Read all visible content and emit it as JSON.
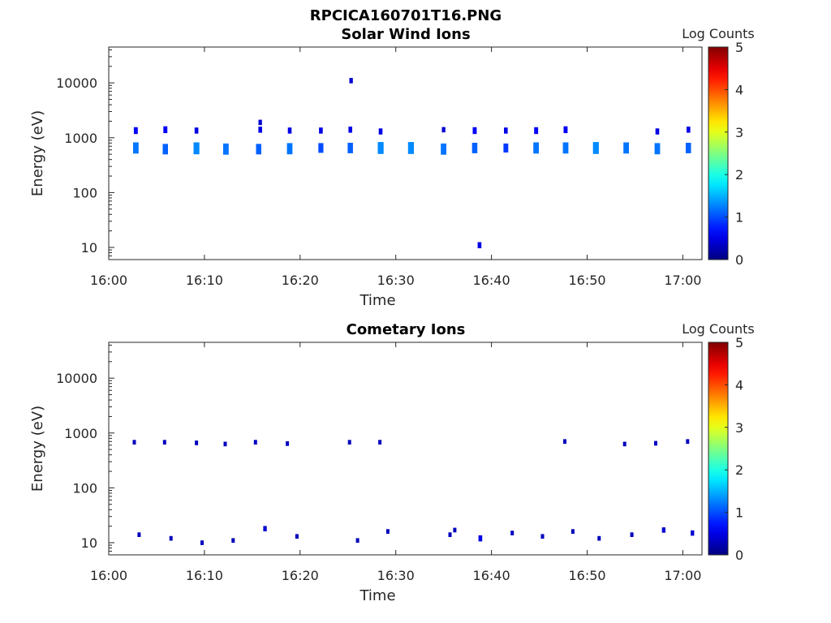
{
  "figure_title": "RPCICA160701T16.PNG",
  "colors": {
    "bg": "#ffffff",
    "axis": "#262626",
    "dark_blue": "#000080",
    "blue": "#0033ff",
    "cyan_blue": "#0099ff"
  },
  "chart_data": [
    {
      "type": "heatmap",
      "title": "Solar Wind Ions",
      "xlabel": "Time",
      "ylabel": "Energy (eV)",
      "y_scale": "log",
      "ylim": [
        6,
        45000
      ],
      "xlim": [
        "16:00",
        "17:02"
      ],
      "x_tick_labels": [
        "16:00",
        "16:10",
        "16:20",
        "16:30",
        "16:40",
        "16:50",
        "17:00"
      ],
      "y_tick_labels": [
        "10",
        "100",
        "1000",
        "10000"
      ],
      "colorbar": {
        "label": "Log Counts",
        "range": [
          0,
          5
        ],
        "tick_labels": [
          "0",
          "1",
          "2",
          "3",
          "4",
          "5"
        ]
      },
      "grid": false,
      "points": [
        {
          "t": "16:02:50",
          "e": 1350,
          "log_counts": 0.6
        },
        {
          "t": "16:02:50",
          "e": 650,
          "log_counts": 1.2
        },
        {
          "t": "16:05:55",
          "e": 1400,
          "log_counts": 0.6
        },
        {
          "t": "16:05:55",
          "e": 620,
          "log_counts": 1.1
        },
        {
          "t": "16:09:10",
          "e": 1350,
          "log_counts": 0.5
        },
        {
          "t": "16:09:10",
          "e": 640,
          "log_counts": 1.3
        },
        {
          "t": "16:12:15",
          "e": 620,
          "log_counts": 1.2
        },
        {
          "t": "16:15:50",
          "e": 1900,
          "log_counts": 0.4
        },
        {
          "t": "16:15:50",
          "e": 1400,
          "log_counts": 0.5
        },
        {
          "t": "16:15:40",
          "e": 620,
          "log_counts": 1.1
        },
        {
          "t": "16:18:55",
          "e": 1350,
          "log_counts": 0.5
        },
        {
          "t": "16:18:55",
          "e": 630,
          "log_counts": 1.2
        },
        {
          "t": "16:22:10",
          "e": 1350,
          "log_counts": 0.5
        },
        {
          "t": "16:22:10",
          "e": 650,
          "log_counts": 1.0
        },
        {
          "t": "16:25:20",
          "e": 11000,
          "log_counts": 0.4
        },
        {
          "t": "16:25:15",
          "e": 1400,
          "log_counts": 0.5
        },
        {
          "t": "16:25:15",
          "e": 650,
          "log_counts": 1.1
        },
        {
          "t": "16:28:25",
          "e": 1300,
          "log_counts": 0.5
        },
        {
          "t": "16:28:25",
          "e": 650,
          "log_counts": 1.3
        },
        {
          "t": "16:31:35",
          "e": 650,
          "log_counts": 1.3
        },
        {
          "t": "16:35:00",
          "e": 1400,
          "log_counts": 0.4
        },
        {
          "t": "16:35:00",
          "e": 620,
          "log_counts": 1.2
        },
        {
          "t": "16:38:15",
          "e": 1350,
          "log_counts": 0.6
        },
        {
          "t": "16:38:15",
          "e": 650,
          "log_counts": 1.1
        },
        {
          "t": "16:38:45",
          "e": 11,
          "log_counts": 0.5
        },
        {
          "t": "16:41:30",
          "e": 1350,
          "log_counts": 0.5
        },
        {
          "t": "16:41:30",
          "e": 650,
          "log_counts": 0.9
        },
        {
          "t": "16:44:40",
          "e": 1350,
          "log_counts": 0.6
        },
        {
          "t": "16:44:40",
          "e": 650,
          "log_counts": 1.2
        },
        {
          "t": "16:47:45",
          "e": 1400,
          "log_counts": 0.6
        },
        {
          "t": "16:47:45",
          "e": 650,
          "log_counts": 1.2
        },
        {
          "t": "16:50:55",
          "e": 650,
          "log_counts": 1.3
        },
        {
          "t": "16:54:05",
          "e": 650,
          "log_counts": 1.2
        },
        {
          "t": "16:57:20",
          "e": 1300,
          "log_counts": 0.5
        },
        {
          "t": "16:57:20",
          "e": 630,
          "log_counts": 1.2
        },
        {
          "t": "17:00:35",
          "e": 1400,
          "log_counts": 0.5
        },
        {
          "t": "17:00:35",
          "e": 650,
          "log_counts": 1.1
        }
      ]
    },
    {
      "type": "heatmap",
      "title": "Cometary Ions",
      "xlabel": "Time",
      "ylabel": "Energy (eV)",
      "y_scale": "log",
      "ylim": [
        6,
        45000
      ],
      "xlim": [
        "16:00",
        "17:02"
      ],
      "x_tick_labels": [
        "16:00",
        "16:10",
        "16:20",
        "16:30",
        "16:40",
        "16:50",
        "17:00"
      ],
      "y_tick_labels": [
        "10",
        "100",
        "1000",
        "10000"
      ],
      "colorbar": {
        "label": "Log Counts",
        "range": [
          0,
          5
        ],
        "tick_labels": [
          "0",
          "1",
          "2",
          "3",
          "4",
          "5"
        ]
      },
      "grid": false,
      "points": [
        {
          "t": "16:02:40",
          "e": 680,
          "log_counts": 0.3
        },
        {
          "t": "16:05:50",
          "e": 680,
          "log_counts": 0.3
        },
        {
          "t": "16:09:10",
          "e": 660,
          "log_counts": 0.3
        },
        {
          "t": "16:12:10",
          "e": 630,
          "log_counts": 0.3
        },
        {
          "t": "16:15:20",
          "e": 680,
          "log_counts": 0.3
        },
        {
          "t": "16:18:40",
          "e": 640,
          "log_counts": 0.3
        },
        {
          "t": "16:25:10",
          "e": 680,
          "log_counts": 0.3
        },
        {
          "t": "16:28:20",
          "e": 680,
          "log_counts": 0.3
        },
        {
          "t": "16:47:40",
          "e": 700,
          "log_counts": 0.3
        },
        {
          "t": "16:53:55",
          "e": 630,
          "log_counts": 0.3
        },
        {
          "t": "16:57:10",
          "e": 650,
          "log_counts": 0.3
        },
        {
          "t": "17:00:30",
          "e": 700,
          "log_counts": 0.3
        },
        {
          "t": "16:03:10",
          "e": 14,
          "log_counts": 0.3
        },
        {
          "t": "16:06:30",
          "e": 12,
          "log_counts": 0.3
        },
        {
          "t": "16:09:45",
          "e": 10,
          "log_counts": 0.3
        },
        {
          "t": "16:13:00",
          "e": 11,
          "log_counts": 0.3
        },
        {
          "t": "16:16:20",
          "e": 18,
          "log_counts": 0.4
        },
        {
          "t": "16:19:40",
          "e": 13,
          "log_counts": 0.3
        },
        {
          "t": "16:26:00",
          "e": 11,
          "log_counts": 0.3
        },
        {
          "t": "16:29:10",
          "e": 16,
          "log_counts": 0.3
        },
        {
          "t": "16:35:40",
          "e": 14,
          "log_counts": 0.3
        },
        {
          "t": "16:36:10",
          "e": 17,
          "log_counts": 0.3
        },
        {
          "t": "16:38:50",
          "e": 12,
          "log_counts": 0.5
        },
        {
          "t": "16:42:10",
          "e": 15,
          "log_counts": 0.3
        },
        {
          "t": "16:45:20",
          "e": 13,
          "log_counts": 0.3
        },
        {
          "t": "16:48:30",
          "e": 16,
          "log_counts": 0.3
        },
        {
          "t": "16:51:15",
          "e": 12,
          "log_counts": 0.3
        },
        {
          "t": "16:54:40",
          "e": 14,
          "log_counts": 0.3
        },
        {
          "t": "16:58:00",
          "e": 17,
          "log_counts": 0.4
        },
        {
          "t": "17:01:00",
          "e": 15,
          "log_counts": 0.4
        }
      ]
    }
  ]
}
